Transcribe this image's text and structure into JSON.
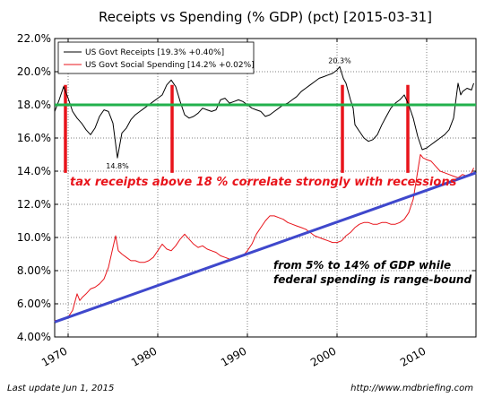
{
  "chart_data": {
    "type": "line",
    "title": "Receipts vs Spending (% GDP) (pct) [2015-03-31]",
    "xlabel": "",
    "ylabel": "",
    "xlim": [
      1968.5,
      2015.5
    ],
    "ylim": [
      4.0,
      22.0
    ],
    "x_ticks": [
      1970,
      1980,
      1990,
      2000,
      2010
    ],
    "y_ticks": [
      4,
      6,
      8,
      10,
      12,
      14,
      16,
      18,
      20,
      22
    ],
    "y_tick_labels": [
      "4.00%",
      "6.00%",
      "8.00%",
      "10.0%",
      "12.0%",
      "14.0%",
      "16.0%",
      "18.0%",
      "20.0%",
      "22.0%"
    ],
    "grid": true,
    "legend_position": "top-left",
    "series": [
      {
        "name": "US Govt Receipts [19.3% +0.40%]",
        "color": "#000000",
        "points": [
          [
            1968.5,
            17.6
          ],
          [
            1969.0,
            18.3
          ],
          [
            1969.5,
            19.1
          ],
          [
            1970.0,
            18.4
          ],
          [
            1970.5,
            17.6
          ],
          [
            1971.0,
            17.2
          ],
          [
            1971.5,
            16.9
          ],
          [
            1972.0,
            16.5
          ],
          [
            1972.5,
            16.2
          ],
          [
            1973.0,
            16.6
          ],
          [
            1973.5,
            17.3
          ],
          [
            1974.0,
            17.7
          ],
          [
            1974.5,
            17.6
          ],
          [
            1975.0,
            16.9
          ],
          [
            1975.5,
            14.8
          ],
          [
            1976.0,
            16.3
          ],
          [
            1976.5,
            16.6
          ],
          [
            1977.0,
            17.1
          ],
          [
            1977.5,
            17.4
          ],
          [
            1978.0,
            17.6
          ],
          [
            1978.5,
            17.8
          ],
          [
            1979.0,
            18.0
          ],
          [
            1979.5,
            18.2
          ],
          [
            1980.0,
            18.4
          ],
          [
            1980.5,
            18.6
          ],
          [
            1981.0,
            19.2
          ],
          [
            1981.5,
            19.5
          ],
          [
            1982.0,
            19.1
          ],
          [
            1982.5,
            18.2
          ],
          [
            1983.0,
            17.4
          ],
          [
            1983.5,
            17.2
          ],
          [
            1984.0,
            17.3
          ],
          [
            1984.5,
            17.5
          ],
          [
            1985.0,
            17.8
          ],
          [
            1985.5,
            17.7
          ],
          [
            1986.0,
            17.6
          ],
          [
            1986.5,
            17.7
          ],
          [
            1987.0,
            18.3
          ],
          [
            1987.5,
            18.4
          ],
          [
            1988.0,
            18.1
          ],
          [
            1988.5,
            18.2
          ],
          [
            1989.0,
            18.3
          ],
          [
            1989.5,
            18.2
          ],
          [
            1990.0,
            18.0
          ],
          [
            1990.5,
            17.8
          ],
          [
            1991.0,
            17.7
          ],
          [
            1991.5,
            17.6
          ],
          [
            1992.0,
            17.3
          ],
          [
            1992.5,
            17.4
          ],
          [
            1993.0,
            17.6
          ],
          [
            1993.5,
            17.8
          ],
          [
            1994.0,
            18.0
          ],
          [
            1994.5,
            18.1
          ],
          [
            1995.0,
            18.3
          ],
          [
            1995.5,
            18.5
          ],
          [
            1996.0,
            18.8
          ],
          [
            1996.5,
            19.0
          ],
          [
            1997.0,
            19.2
          ],
          [
            1997.5,
            19.4
          ],
          [
            1998.0,
            19.6
          ],
          [
            1998.5,
            19.7
          ],
          [
            1999.0,
            19.8
          ],
          [
            1999.5,
            19.9
          ],
          [
            2000.0,
            20.1
          ],
          [
            2000.3,
            20.3
          ],
          [
            2000.7,
            19.6
          ],
          [
            2001.0,
            19.3
          ],
          [
            2001.5,
            18.3
          ],
          [
            2001.8,
            17.8
          ],
          [
            2002.0,
            16.8
          ],
          [
            2002.5,
            16.4
          ],
          [
            2003.0,
            16.0
          ],
          [
            2003.5,
            15.8
          ],
          [
            2004.0,
            15.9
          ],
          [
            2004.5,
            16.2
          ],
          [
            2005.0,
            16.8
          ],
          [
            2005.5,
            17.3
          ],
          [
            2006.0,
            17.8
          ],
          [
            2006.5,
            18.1
          ],
          [
            2007.0,
            18.3
          ],
          [
            2007.5,
            18.6
          ],
          [
            2008.0,
            18.0
          ],
          [
            2008.5,
            17.2
          ],
          [
            2009.0,
            16.1
          ],
          [
            2009.5,
            15.3
          ],
          [
            2010.0,
            15.4
          ],
          [
            2010.5,
            15.6
          ],
          [
            2011.0,
            15.8
          ],
          [
            2011.5,
            16.0
          ],
          [
            2012.0,
            16.2
          ],
          [
            2012.5,
            16.5
          ],
          [
            2013.0,
            17.2
          ],
          [
            2013.5,
            19.3
          ],
          [
            2013.8,
            18.6
          ],
          [
            2014.0,
            18.8
          ],
          [
            2014.5,
            19.0
          ],
          [
            2015.0,
            18.9
          ],
          [
            2015.25,
            19.3
          ]
        ]
      },
      {
        "name": "US Govt Social Spending [14.2% +0.02%]",
        "color": "#e8141b",
        "points": [
          [
            1968.5,
            5.0
          ],
          [
            1969.0,
            5.0
          ],
          [
            1969.5,
            5.1
          ],
          [
            1970.0,
            5.2
          ],
          [
            1970.5,
            5.6
          ],
          [
            1971.0,
            6.6
          ],
          [
            1971.3,
            6.2
          ],
          [
            1971.6,
            6.4
          ],
          [
            1972.0,
            6.6
          ],
          [
            1972.5,
            6.9
          ],
          [
            1973.0,
            7.0
          ],
          [
            1973.5,
            7.2
          ],
          [
            1974.0,
            7.5
          ],
          [
            1974.5,
            8.2
          ],
          [
            1975.0,
            9.4
          ],
          [
            1975.3,
            10.1
          ],
          [
            1975.6,
            9.2
          ],
          [
            1976.0,
            9.0
          ],
          [
            1976.5,
            8.8
          ],
          [
            1977.0,
            8.6
          ],
          [
            1977.5,
            8.6
          ],
          [
            1978.0,
            8.5
          ],
          [
            1978.5,
            8.5
          ],
          [
            1979.0,
            8.6
          ],
          [
            1979.5,
            8.8
          ],
          [
            1980.0,
            9.2
          ],
          [
            1980.5,
            9.6
          ],
          [
            1981.0,
            9.3
          ],
          [
            1981.5,
            9.2
          ],
          [
            1982.0,
            9.5
          ],
          [
            1982.5,
            9.9
          ],
          [
            1983.0,
            10.2
          ],
          [
            1983.5,
            9.9
          ],
          [
            1984.0,
            9.6
          ],
          [
            1984.5,
            9.4
          ],
          [
            1985.0,
            9.5
          ],
          [
            1985.5,
            9.3
          ],
          [
            1986.0,
            9.2
          ],
          [
            1986.5,
            9.1
          ],
          [
            1987.0,
            8.9
          ],
          [
            1987.5,
            8.8
          ],
          [
            1988.0,
            8.7
          ],
          [
            1988.5,
            8.7
          ],
          [
            1989.0,
            8.8
          ],
          [
            1989.5,
            8.9
          ],
          [
            1990.0,
            9.2
          ],
          [
            1990.5,
            9.6
          ],
          [
            1991.0,
            10.2
          ],
          [
            1991.5,
            10.6
          ],
          [
            1992.0,
            11.0
          ],
          [
            1992.5,
            11.3
          ],
          [
            1993.0,
            11.3
          ],
          [
            1993.5,
            11.2
          ],
          [
            1994.0,
            11.1
          ],
          [
            1994.5,
            10.9
          ],
          [
            1995.0,
            10.8
          ],
          [
            1995.5,
            10.7
          ],
          [
            1996.0,
            10.6
          ],
          [
            1996.5,
            10.5
          ],
          [
            1997.0,
            10.3
          ],
          [
            1997.5,
            10.1
          ],
          [
            1998.0,
            10.0
          ],
          [
            1998.5,
            9.9
          ],
          [
            1999.0,
            9.8
          ],
          [
            1999.5,
            9.7
          ],
          [
            2000.0,
            9.7
          ],
          [
            2000.5,
            9.8
          ],
          [
            2001.0,
            10.1
          ],
          [
            2001.5,
            10.3
          ],
          [
            2002.0,
            10.6
          ],
          [
            2002.5,
            10.8
          ],
          [
            2003.0,
            10.9
          ],
          [
            2003.5,
            10.9
          ],
          [
            2004.0,
            10.8
          ],
          [
            2004.5,
            10.8
          ],
          [
            2005.0,
            10.9
          ],
          [
            2005.5,
            10.9
          ],
          [
            2006.0,
            10.8
          ],
          [
            2006.5,
            10.8
          ],
          [
            2007.0,
            10.9
          ],
          [
            2007.5,
            11.1
          ],
          [
            2008.0,
            11.5
          ],
          [
            2008.5,
            12.3
          ],
          [
            2009.0,
            14.0
          ],
          [
            2009.3,
            15.0
          ],
          [
            2009.6,
            14.8
          ],
          [
            2010.0,
            14.7
          ],
          [
            2010.5,
            14.6
          ],
          [
            2011.0,
            14.3
          ],
          [
            2011.5,
            14.0
          ],
          [
            2012.0,
            13.9
          ],
          [
            2012.5,
            13.8
          ],
          [
            2013.0,
            13.7
          ],
          [
            2013.5,
            13.6
          ],
          [
            2014.0,
            13.8
          ],
          [
            2014.5,
            13.7
          ],
          [
            2015.0,
            13.9
          ],
          [
            2015.25,
            14.2
          ]
        ]
      }
    ],
    "trend_line": {
      "color": "#3f48cc",
      "from": [
        1968.5,
        4.9
      ],
      "to": [
        2015.5,
        13.9
      ]
    },
    "threshold_line": {
      "color": "#22b14c",
      "y": 18.0
    },
    "recession_markers": {
      "color": "#e8141b",
      "x": [
        1969.7,
        1981.6,
        2000.6,
        2007.9
      ],
      "y_from": 19.2,
      "y_to": 13.9
    },
    "point_labels": [
      {
        "text": "14.8%",
        "x": 1975.5,
        "y": 14.8
      },
      {
        "text": "20.3%",
        "x": 2000.3,
        "y": 20.3
      }
    ],
    "annotations": {
      "recessions": "tax receipts above 18 %   correlate strongly with recessions",
      "spending_line1": "from 5% to 14% of GDP while",
      "spending_line2": "federal spending is  range-bound"
    },
    "footer": {
      "left": "Last update Jun  1, 2015",
      "right": "http://www.mdbriefing.com"
    }
  }
}
